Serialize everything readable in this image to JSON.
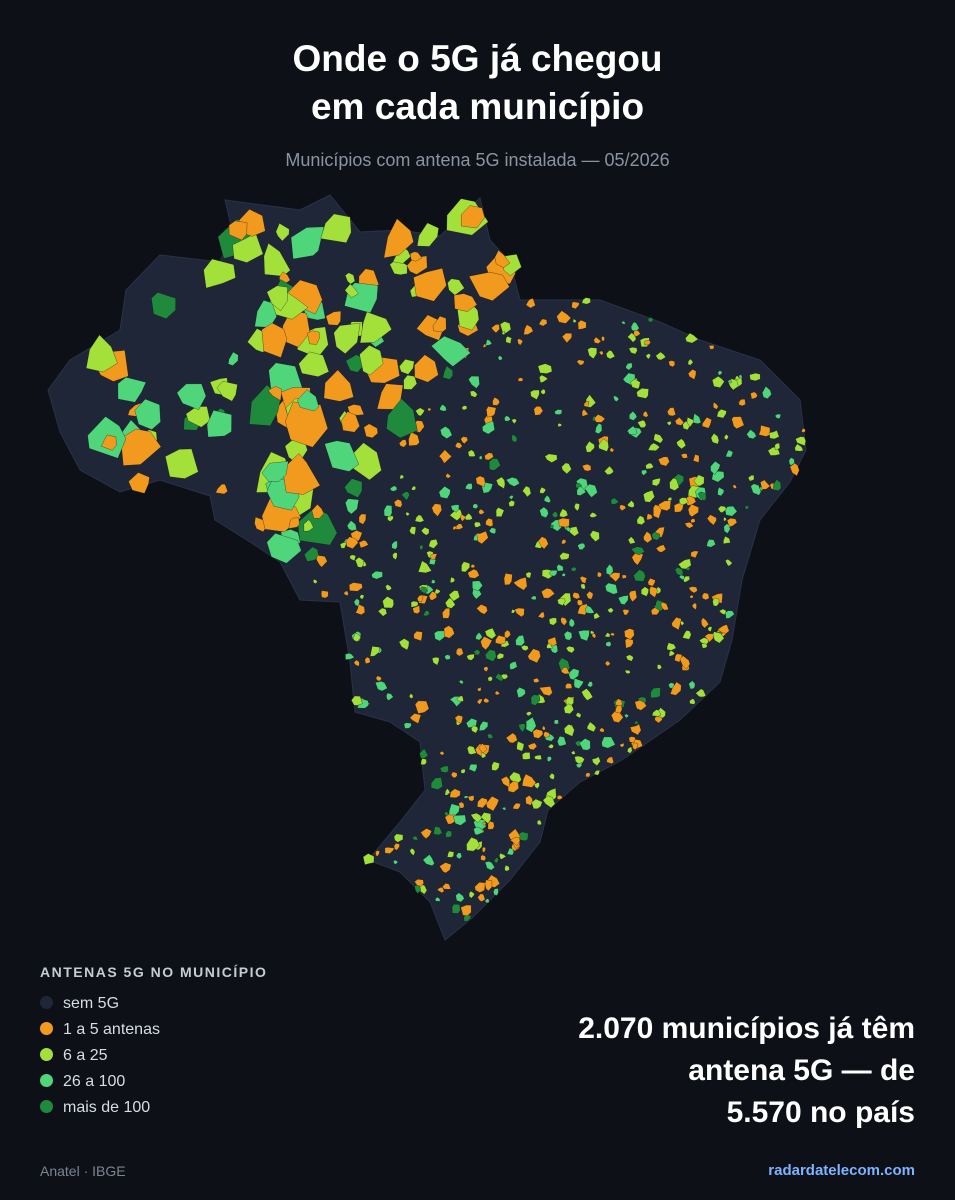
{
  "header": {
    "title": [
      "Onde o 5G já chegou",
      "em cada município"
    ],
    "subtitle": "Municípios com antena 5G instalada — 05/2026"
  },
  "legend": {
    "title": "ANTENAS 5G NO MUNICÍPIO",
    "items": [
      {
        "label": "sem 5G",
        "color": "#1e2638"
      },
      {
        "label": "1 a 5 antenas",
        "color": "#f29a1d"
      },
      {
        "label": "6 a 25",
        "color": "#a3e03a"
      },
      {
        "label": "26 a 100",
        "color": "#4fd67a"
      },
      {
        "label": "mais de 100",
        "color": "#1f8a3b"
      }
    ]
  },
  "headline": [
    "2.070 municípios já têm",
    "antena 5G — de",
    "5.570 no país"
  ],
  "footer": {
    "source": "Anatel · IBGE",
    "site": "radardatelecom.com"
  }
}
